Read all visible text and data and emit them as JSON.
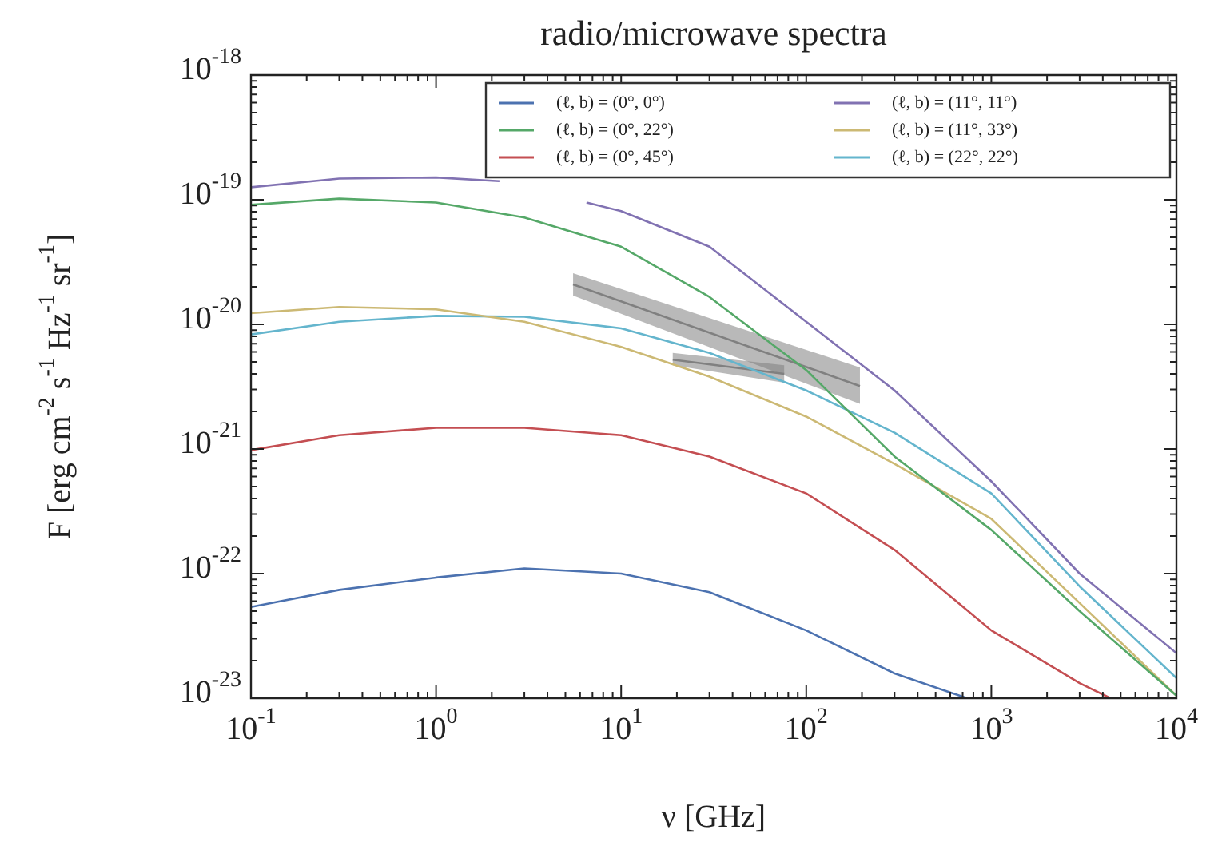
{
  "chart_data": {
    "type": "line",
    "title": "radio/microwave spectra",
    "xlabel": "ν [GHz]",
    "ylabel": "F [erg cm$^{-2}$ s$^{-1}$ Hz$^{-1}$ sr$^{-1}$]",
    "log": "xy",
    "grid": false,
    "legend": "top right",
    "marker": "none",
    "line_style": "solid",
    "xlim": [
      0.1,
      10000
    ],
    "ylim": [
      1e-23,
      1e-18
    ],
    "xticks": [
      {
        "value": 0.1,
        "label": "10$^{-1}$"
      },
      {
        "value": 1,
        "label": "10$^{0}$"
      },
      {
        "value": 10,
        "label": "10$^{1}$"
      },
      {
        "value": 100,
        "label": "10$^{2}$"
      },
      {
        "value": 1000,
        "label": "10$^{3}$"
      },
      {
        "value": 10000,
        "label": "10$^{4}$"
      }
    ],
    "yticks": [
      {
        "value": 1e-23,
        "label": "10$^{-23}$"
      },
      {
        "value": 1e-22,
        "label": "10$^{-22}$"
      },
      {
        "value": 1e-21,
        "label": "10$^{-21}$"
      },
      {
        "value": 1e-20,
        "label": "10$^{-20}$"
      },
      {
        "value": 1e-19,
        "label": "10$^{-19}$"
      },
      {
        "value": 1e-18,
        "label": "10$^{-18}$"
      }
    ],
    "x": [
      0.1,
      0.3,
      1,
      3,
      10,
      30,
      100,
      300,
      1000,
      3000,
      10000
    ],
    "series": [
      {
        "name": "(ℓ, b) = (0°, 0°)",
        "color": "#4c72b0",
        "x": [
          0.1,
          0.3,
          1,
          3,
          10,
          30,
          100,
          300,
          740
        ],
        "values": [
          5.4e-23,
          7.4e-23,
          9.3e-23,
          1.1e-22,
          1e-22,
          7.1e-23,
          3.5e-23,
          1.58e-23,
          1e-23
        ]
      },
      {
        "name": "(ℓ, b) = (0°, 22°)",
        "color": "#55a868",
        "values": [
          9.1e-20,
          1.02e-19,
          9.5e-20,
          7.2e-20,
          4.2e-20,
          1.66e-20,
          4.3e-21,
          8.7e-22,
          2.24e-22,
          5e-23,
          1.05e-23
        ]
      },
      {
        "name": "(ℓ, b) = (0°, 45°)",
        "color": "#c44e52",
        "x": [
          0.1,
          0.3,
          1,
          3,
          10,
          30,
          100,
          300,
          1000,
          3000,
          4400
        ],
        "values": [
          9.8e-22,
          1.29e-21,
          1.48e-21,
          1.48e-21,
          1.29e-21,
          8.7e-22,
          4.4e-22,
          1.55e-22,
          3.5e-23,
          1.32e-23,
          1e-23
        ]
      },
      {
        "name": "(ℓ, b) = (11°, 11°)",
        "color": "#8172b2",
        "x": [
          0.1,
          0.3,
          1,
          2.2,
          3.5,
          6.5,
          10,
          30,
          100,
          300,
          1000,
          3000,
          10000
        ],
        "values": [
          1.26e-19,
          1.48e-19,
          1.51e-19,
          1.41e-19,
          null,
          9.5e-20,
          8.1e-20,
          4.2e-20,
          1.05e-20,
          2.95e-21,
          5.5e-22,
          1e-22,
          2.3e-23
        ]
      },
      {
        "name": "(ℓ, b) = (11°, 33°)",
        "color": "#ccb974",
        "values": [
          1.23e-20,
          1.38e-20,
          1.32e-20,
          1.05e-20,
          6.6e-21,
          3.8e-21,
          1.82e-21,
          7.6e-22,
          2.75e-22,
          5.8e-23,
          1.05e-23
        ]
      },
      {
        "name": "(ℓ, b) = (22°, 22°)",
        "color": "#64b5cd",
        "values": [
          8.3e-21,
          1.05e-20,
          1.17e-20,
          1.15e-20,
          9.3e-21,
          5.9e-21,
          2.95e-21,
          1.35e-21,
          4.4e-22,
          7.9e-23,
          1.45e-23
        ]
      },
      {
        "color": "#808080",
        "x": [
          5.5,
          195
        ],
        "values": [
          2.09e-20,
          3.2e-21
        ],
        "lower": [
          1.7e-20,
          2.3e-21
        ],
        "upper": [
          2.57e-20,
          4.5e-21
        ]
      },
      {
        "color": "#808080",
        "x": [
          19,
          76
        ],
        "values": [
          5.2e-21,
          4e-21
        ],
        "lower": [
          4.7e-21,
          3.4e-21
        ],
        "upper": [
          5.9e-21,
          4.7e-21
        ]
      }
    ]
  }
}
